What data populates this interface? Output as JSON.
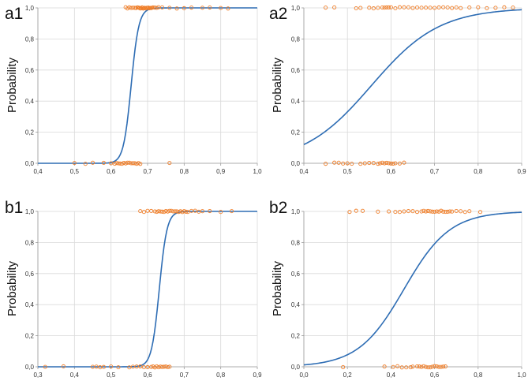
{
  "chart_data": [
    {
      "type": "scatter",
      "panel_label": "a1",
      "ylabel": "Probability",
      "xlabel": "",
      "xlim": [
        0.4,
        1.0
      ],
      "ylim": [
        0.0,
        1.0
      ],
      "x_ticks": [
        "0,4",
        "0,5",
        "0,6",
        "0,7",
        "0,8",
        "0,9",
        "1,0"
      ],
      "x_tick_values": [
        0.4,
        0.5,
        0.6,
        0.7,
        0.8,
        0.9,
        1.0
      ],
      "y_ticks": [
        "0,0",
        "0,2",
        "0,4",
        "0,6",
        "0,8",
        "1,0"
      ],
      "y_tick_values": [
        0.0,
        0.2,
        0.4,
        0.6,
        0.8,
        1.0
      ],
      "grid": true,
      "series": [
        {
          "kind": "points",
          "points_y1": [
            0.64,
            0.645,
            0.65,
            0.655,
            0.66,
            0.665,
            0.668,
            0.672,
            0.675,
            0.678,
            0.68,
            0.682,
            0.685,
            0.688,
            0.69,
            0.692,
            0.695,
            0.698,
            0.7,
            0.702,
            0.705,
            0.708,
            0.71,
            0.712,
            0.715,
            0.72,
            0.725,
            0.73,
            0.74,
            0.76,
            0.78,
            0.8,
            0.82,
            0.85,
            0.87,
            0.9,
            0.92
          ],
          "points_y0": [
            0.5,
            0.53,
            0.55,
            0.58,
            0.6,
            0.61,
            0.615,
            0.62,
            0.625,
            0.63,
            0.635,
            0.64,
            0.645,
            0.65,
            0.655,
            0.66,
            0.665,
            0.67,
            0.675,
            0.68,
            0.76
          ]
        },
        {
          "kind": "logistic",
          "midpoint": 0.655,
          "scale": 0.0105
        }
      ]
    },
    {
      "type": "scatter",
      "panel_label": "a2",
      "ylabel": "Probability",
      "xlabel": "",
      "xlim": [
        0.4,
        0.9
      ],
      "ylim": [
        0.0,
        1.0
      ],
      "x_ticks": [
        "0,4",
        "0,5",
        "0,6",
        "0,7",
        "0,8",
        "0,9"
      ],
      "x_tick_values": [
        0.4,
        0.5,
        0.6,
        0.7,
        0.8,
        0.9
      ],
      "y_ticks": [
        "0,0",
        "0,2",
        "0,4",
        "0,6",
        "0,8",
        "1,0"
      ],
      "y_tick_values": [
        0.0,
        0.2,
        0.4,
        0.6,
        0.8,
        1.0
      ],
      "grid": true,
      "series": [
        {
          "kind": "points",
          "points_y1": [
            0.45,
            0.47,
            0.52,
            0.53,
            0.55,
            0.56,
            0.57,
            0.58,
            0.585,
            0.59,
            0.595,
            0.6,
            0.61,
            0.62,
            0.63,
            0.64,
            0.65,
            0.66,
            0.67,
            0.68,
            0.69,
            0.7,
            0.71,
            0.72,
            0.73,
            0.74,
            0.75,
            0.76,
            0.78,
            0.8,
            0.82,
            0.84,
            0.86,
            0.88
          ],
          "points_y0": [
            0.45,
            0.47,
            0.48,
            0.49,
            0.5,
            0.51,
            0.53,
            0.54,
            0.55,
            0.56,
            0.57,
            0.575,
            0.58,
            0.585,
            0.59,
            0.595,
            0.6,
            0.605,
            0.61,
            0.62,
            0.63
          ]
        },
        {
          "kind": "logistic",
          "midpoint": 0.555,
          "scale": 0.078
        }
      ]
    },
    {
      "type": "scatter",
      "panel_label": "b1",
      "ylabel": "Probability",
      "xlabel": "",
      "xlim": [
        0.3,
        0.9
      ],
      "ylim": [
        0.0,
        1.0
      ],
      "x_ticks": [
        "0,3",
        "0,4",
        "0,5",
        "0,6",
        "0,7",
        "0,8",
        "0,9"
      ],
      "x_tick_values": [
        0.3,
        0.4,
        0.5,
        0.6,
        0.7,
        0.8,
        0.9
      ],
      "y_ticks": [
        "0,0",
        "0,2",
        "0,4",
        "0,6",
        "0,8",
        "1,0"
      ],
      "y_tick_values": [
        0.0,
        0.2,
        0.4,
        0.6,
        0.8,
        1.0
      ],
      "grid": true,
      "series": [
        {
          "kind": "points",
          "points_y1": [
            0.58,
            0.59,
            0.6,
            0.61,
            0.62,
            0.625,
            0.63,
            0.635,
            0.64,
            0.645,
            0.65,
            0.655,
            0.66,
            0.665,
            0.67,
            0.675,
            0.68,
            0.685,
            0.69,
            0.695,
            0.7,
            0.705,
            0.71,
            0.72,
            0.73,
            0.74,
            0.75,
            0.77,
            0.8,
            0.83
          ],
          "points_y0": [
            0.32,
            0.37,
            0.45,
            0.46,
            0.47,
            0.48,
            0.5,
            0.52,
            0.55,
            0.56,
            0.57,
            0.58,
            0.59,
            0.6,
            0.61,
            0.615,
            0.62,
            0.625,
            0.63,
            0.635,
            0.64,
            0.645,
            0.65,
            0.655,
            0.66
          ]
        },
        {
          "kind": "logistic",
          "midpoint": 0.632,
          "scale": 0.0105
        }
      ]
    },
    {
      "type": "scatter",
      "panel_label": "b2",
      "ylabel": "Probability",
      "xlabel": "",
      "xlim": [
        0.0,
        1.0
      ],
      "ylim": [
        0.0,
        1.0
      ],
      "x_ticks": [
        "0,0",
        "0,2",
        "0,4",
        "0,6",
        "0,8",
        "1,0"
      ],
      "x_tick_values": [
        0.0,
        0.2,
        0.4,
        0.6,
        0.8,
        1.0
      ],
      "y_ticks": [
        "0,0",
        "0,2",
        "0,4",
        "0,6",
        "0,8",
        "1,0"
      ],
      "y_tick_values": [
        0.0,
        0.2,
        0.4,
        0.6,
        0.8,
        1.0
      ],
      "grid": true,
      "series": [
        {
          "kind": "points",
          "points_y1": [
            0.21,
            0.24,
            0.27,
            0.34,
            0.39,
            0.42,
            0.44,
            0.46,
            0.48,
            0.5,
            0.52,
            0.54,
            0.55,
            0.56,
            0.57,
            0.58,
            0.59,
            0.6,
            0.61,
            0.62,
            0.63,
            0.64,
            0.65,
            0.66,
            0.67,
            0.68,
            0.7,
            0.72,
            0.74,
            0.76,
            0.81
          ],
          "points_y0": [
            0.18,
            0.37,
            0.41,
            0.43,
            0.45,
            0.47,
            0.49,
            0.5,
            0.52,
            0.53,
            0.54,
            0.55,
            0.56,
            0.57,
            0.58,
            0.59,
            0.6,
            0.61,
            0.62,
            0.63,
            0.64,
            0.65
          ]
        },
        {
          "kind": "logistic",
          "midpoint": 0.46,
          "scale": 0.105
        }
      ]
    }
  ],
  "colors": {
    "curve": "#2e6db4",
    "points": "#f07f2a",
    "grid": "#d9d9d9",
    "axis": "#9a9a9a"
  }
}
